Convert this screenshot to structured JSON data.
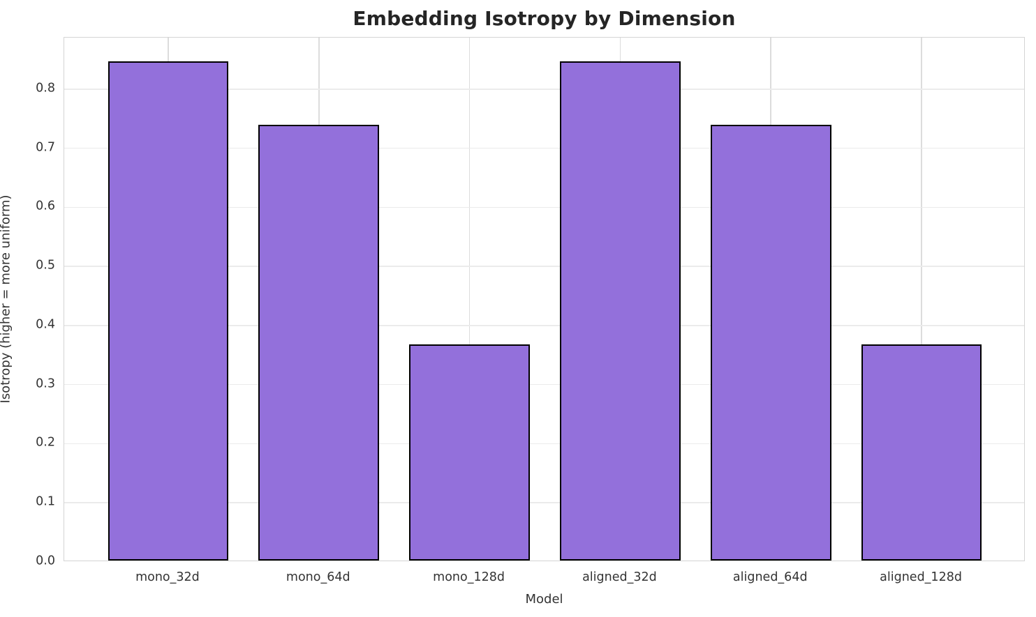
{
  "chart_data": {
    "type": "bar",
    "title": "Embedding Isotropy by Dimension",
    "xlabel": "Model",
    "ylabel": "Isotropy (higher = more uniform)",
    "categories": [
      "mono_32d",
      "mono_64d",
      "mono_128d",
      "aligned_32d",
      "aligned_64d",
      "aligned_128d"
    ],
    "values": [
      0.845,
      0.737,
      0.366,
      0.845,
      0.737,
      0.366
    ],
    "ylim": [
      0,
      0.887
    ],
    "yticks": [
      0.0,
      0.1,
      0.2,
      0.3,
      0.4,
      0.5,
      0.6,
      0.7,
      0.8
    ],
    "bar_color": "#9370DB",
    "bar_edge_color": "#000000",
    "grid": true,
    "legend_position": "none"
  }
}
